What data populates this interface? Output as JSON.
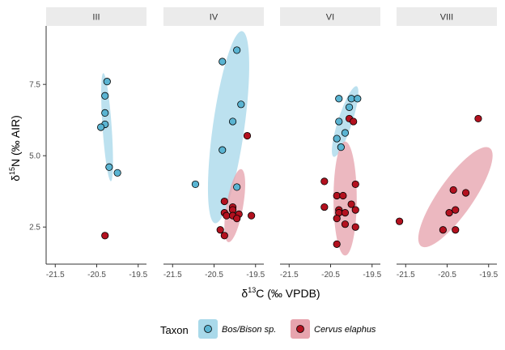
{
  "chart_data": {
    "type": "scatter",
    "facets": [
      "III",
      "IV",
      "VI",
      "VIII"
    ],
    "x_axis": {
      "label_parts": [
        "δ",
        "13",
        "C (‰ VPDB)"
      ],
      "ticks": [
        -21.5,
        -20.5,
        -19.5
      ],
      "tick_labels": [
        "-21.5",
        "-20.5",
        "-19.5"
      ],
      "range": [
        -21.72,
        -19.3
      ]
    },
    "y_axis": {
      "label_parts": [
        "δ",
        "15",
        "N (‰ AIR)"
      ],
      "ticks": [
        2.5,
        5.0,
        7.5
      ],
      "tick_labels": [
        "2.5",
        "5.0",
        "7.5"
      ],
      "range": [
        1.2,
        9.55
      ]
    },
    "legend": {
      "title": "Taxon",
      "position": "bottom",
      "entries": [
        {
          "label": "Bos/Bison sp.",
          "point_color": "#5ab4d2",
          "ellipse_color": "#a9d9ea"
        },
        {
          "label": "Cervus elaphus",
          "point_color": "#b3111f",
          "ellipse_color": "#e7a4ae"
        }
      ]
    },
    "grid": false,
    "series": [
      {
        "name": "Bos/Bison sp.",
        "color": "#5ab4d2",
        "ellipse_fill": "#a9d9ea",
        "points": {
          "III": [
            [
              -20.25,
              7.6
            ],
            [
              -20.3,
              7.1
            ],
            [
              -20.3,
              6.5
            ],
            [
              -20.3,
              6.1
            ],
            [
              -20.4,
              6.0
            ],
            [
              -20.2,
              4.6
            ],
            [
              -20.0,
              4.4
            ]
          ],
          "IV": [
            [
              -20.3,
              8.3
            ],
            [
              -19.95,
              8.7
            ],
            [
              -19.85,
              6.8
            ],
            [
              -20.05,
              6.2
            ],
            [
              -20.3,
              5.2
            ],
            [
              -20.95,
              4.0
            ],
            [
              -19.95,
              3.9
            ]
          ],
          "VI": [
            [
              -20.3,
              7.0
            ],
            [
              -20.0,
              7.0
            ],
            [
              -19.85,
              7.0
            ],
            [
              -20.05,
              6.7
            ],
            [
              -20.3,
              6.2
            ],
            [
              -20.15,
              5.8
            ],
            [
              -20.35,
              5.6
            ],
            [
              -20.25,
              5.3
            ]
          ],
          "VIII": []
        }
      },
      {
        "name": "Cervus elaphus",
        "color": "#b3111f",
        "ellipse_fill": "#e7a4ae",
        "points": {
          "III": [
            [
              -20.3,
              2.2
            ]
          ],
          "IV": [
            [
              -19.7,
              5.7
            ],
            [
              -20.25,
              3.4
            ],
            [
              -20.05,
              3.2
            ],
            [
              -20.05,
              3.1
            ],
            [
              -20.25,
              3.0
            ],
            [
              -20.2,
              2.9
            ],
            [
              -20.05,
              2.9
            ],
            [
              -19.9,
              2.95
            ],
            [
              -19.6,
              2.9
            ],
            [
              -19.95,
              2.8
            ],
            [
              -20.35,
              2.4
            ],
            [
              -20.25,
              2.2
            ]
          ],
          "VI": [
            [
              -20.05,
              6.3
            ],
            [
              -19.95,
              6.2
            ],
            [
              -20.65,
              4.1
            ],
            [
              -19.9,
              4.0
            ],
            [
              -20.35,
              3.6
            ],
            [
              -20.2,
              3.6
            ],
            [
              -20.65,
              3.2
            ],
            [
              -20.3,
              3.1
            ],
            [
              -20.3,
              3.0
            ],
            [
              -20.15,
              3.0
            ],
            [
              -20.0,
              3.3
            ],
            [
              -19.9,
              3.1
            ],
            [
              -20.35,
              2.8
            ],
            [
              -20.15,
              2.6
            ],
            [
              -19.9,
              2.5
            ],
            [
              -20.35,
              1.9
            ]
          ],
          "VIII": [
            [
              -19.75,
              6.3
            ],
            [
              -21.65,
              2.7
            ],
            [
              -20.35,
              3.8
            ],
            [
              -20.05,
              3.7
            ],
            [
              -20.45,
              3.0
            ],
            [
              -20.3,
              3.1
            ],
            [
              -20.6,
              2.4
            ],
            [
              -20.3,
              2.4
            ]
          ]
        }
      }
    ],
    "ellipses": {
      "III": [
        {
          "series": "Bos/Bison sp.",
          "cx": -20.25,
          "cy": 6.0,
          "rx": 0.11,
          "ry": 1.9,
          "rotate": -4
        }
      ],
      "IV": [
        {
          "series": "Bos/Bison sp.",
          "cx": -20.15,
          "cy": 6.0,
          "rx": 0.38,
          "ry": 3.4,
          "rotate": 8
        },
        {
          "series": "Cervus elaphus",
          "cx": -20.0,
          "cy": 3.25,
          "rx": 0.2,
          "ry": 1.3,
          "rotate": 10
        }
      ],
      "VI": [
        {
          "series": "Bos/Bison sp.",
          "cx": -20.15,
          "cy": 6.2,
          "rx": 0.17,
          "ry": 1.3,
          "rotate": 18
        },
        {
          "series": "Cervus elaphus",
          "cx": -20.15,
          "cy": 3.5,
          "rx": 0.28,
          "ry": 2.0,
          "rotate": 0
        }
      ],
      "VIII": [
        {
          "series": "Cervus elaphus",
          "cx": -20.3,
          "cy": 3.55,
          "rx": 0.42,
          "ry": 2.1,
          "rotate": 35
        }
      ]
    }
  }
}
